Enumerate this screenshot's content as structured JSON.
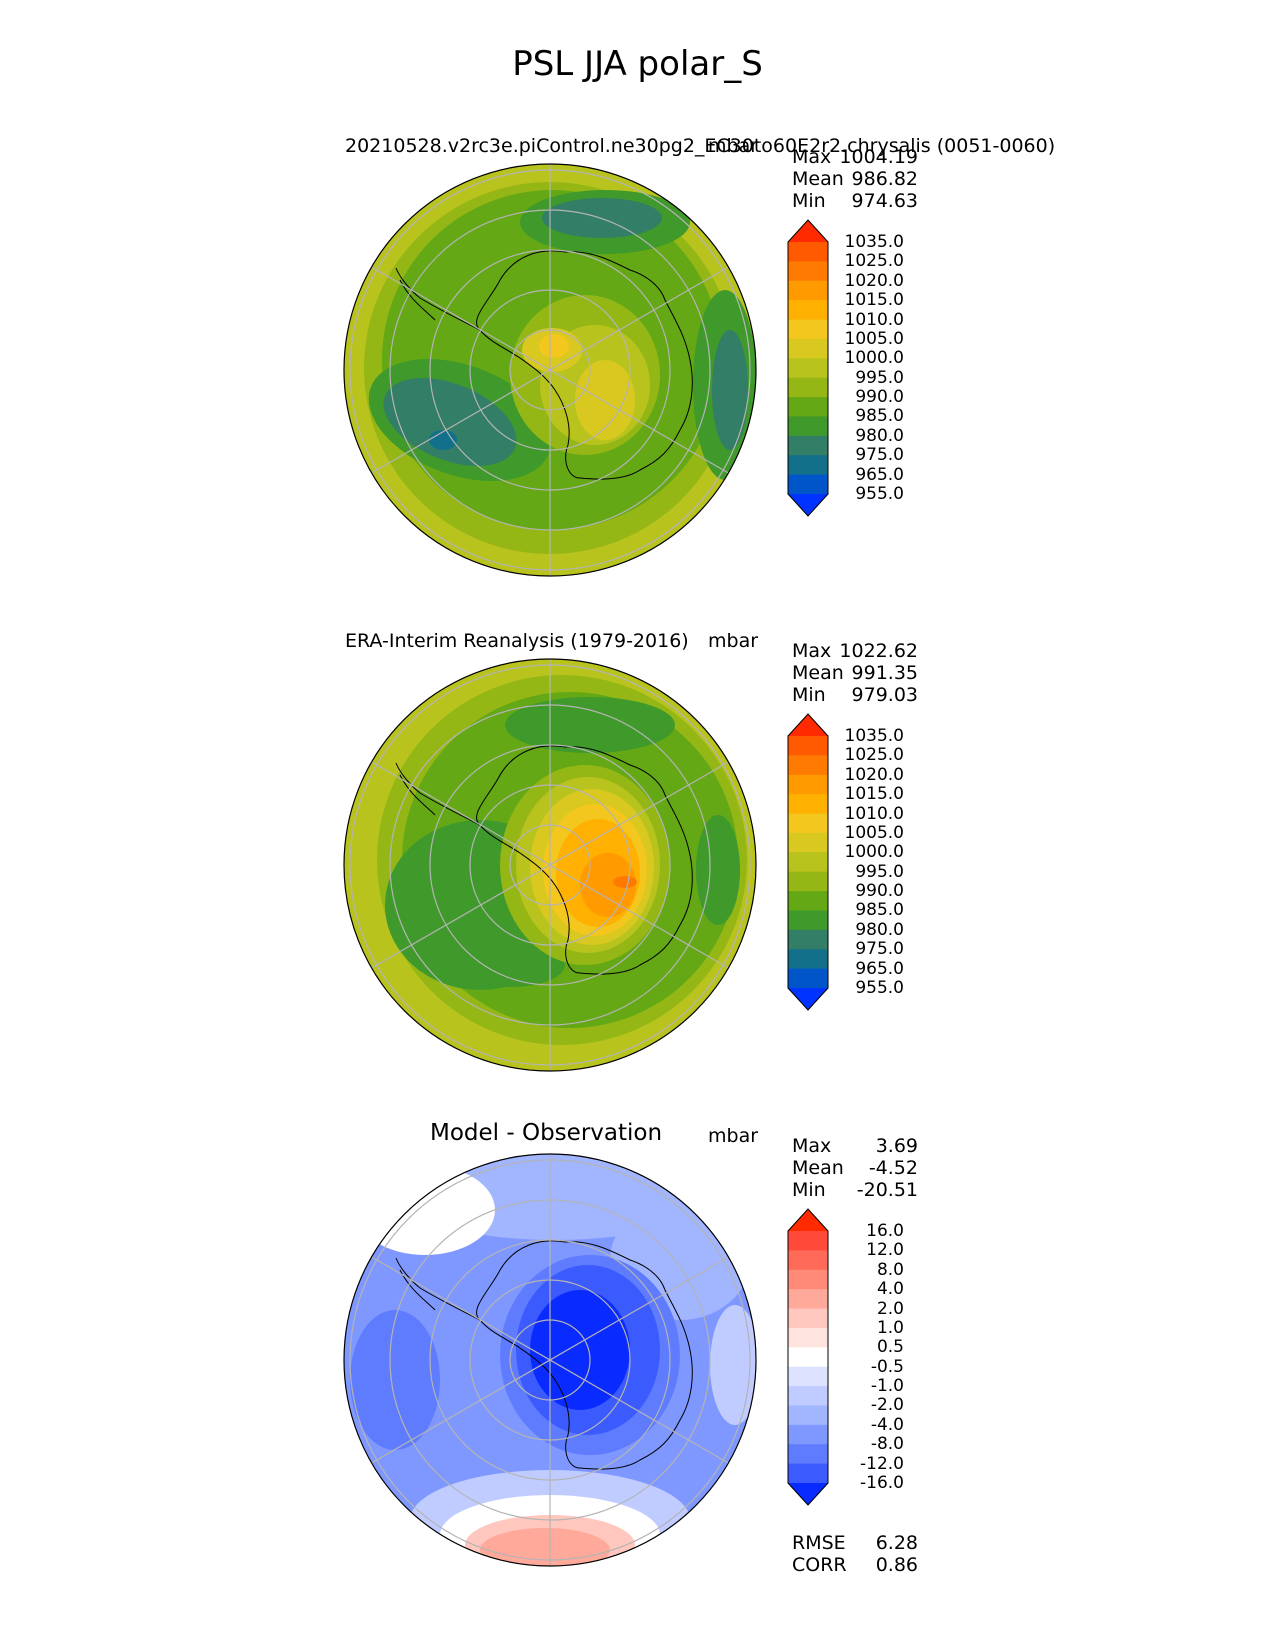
{
  "figure": {
    "title": "PSL JJA polar_S"
  },
  "chart_data": [
    {
      "type": "heatmap",
      "projection": "south-polar-stereographic",
      "title": "20210528.v2rc3e.piControl.ne30pg2_EC30to60E2r2.chrysalis (0051-0060)",
      "units": "mbar",
      "stats": {
        "max": "1004.19",
        "mean": "986.82",
        "min": "974.63"
      },
      "colorbar_levels": [
        "1035.0",
        "1025.0",
        "1020.0",
        "1015.0",
        "1010.0",
        "1005.0",
        "1000.0",
        "995.0",
        "990.0",
        "985.0",
        "980.0",
        "975.0",
        "965.0",
        "955.0"
      ],
      "colorbar_colors": [
        "#ff2a00",
        "#ff5a00",
        "#ff7a00",
        "#ff9a00",
        "#ffb000",
        "#f3c71d",
        "#d9c820",
        "#b9c31e",
        "#95b716",
        "#64a815",
        "#3f9a2b",
        "#327e66",
        "#13708a",
        "#0055c8",
        "#0033ff"
      ]
    },
    {
      "type": "heatmap",
      "projection": "south-polar-stereographic",
      "title": "ERA-Interim Reanalysis (1979-2016)",
      "units": "mbar",
      "stats": {
        "max": "1022.62",
        "mean": "991.35",
        "min": "979.03"
      },
      "colorbar_levels": [
        "1035.0",
        "1025.0",
        "1020.0",
        "1015.0",
        "1010.0",
        "1005.0",
        "1000.0",
        "995.0",
        "990.0",
        "985.0",
        "980.0",
        "975.0",
        "965.0",
        "955.0"
      ],
      "colorbar_colors": [
        "#ff2a00",
        "#ff5a00",
        "#ff7a00",
        "#ff9a00",
        "#ffb000",
        "#f3c71d",
        "#d9c820",
        "#b9c31e",
        "#95b716",
        "#64a815",
        "#3f9a2b",
        "#327e66",
        "#13708a",
        "#0055c8",
        "#0033ff"
      ]
    },
    {
      "type": "heatmap",
      "projection": "south-polar-stereographic",
      "title": "Model - Observation",
      "units": "mbar",
      "stats": {
        "max": "3.69",
        "mean": "-4.52",
        "min": "-20.51"
      },
      "colorbar_levels": [
        "16.0",
        "12.0",
        "8.0",
        "4.0",
        "2.0",
        "1.0",
        "0.5",
        "-0.5",
        "-1.0",
        "-2.0",
        "-4.0",
        "-8.0",
        "-12.0",
        "-16.0"
      ],
      "colorbar_colors": [
        "#ff2a00",
        "#ff4a3a",
        "#ff6b58",
        "#ff8a78",
        "#ffa99a",
        "#ffc7bd",
        "#ffe3de",
        "#ffffff",
        "#dde3ff",
        "#c0ccff",
        "#a2b5ff",
        "#7f98ff",
        "#5f7cff",
        "#3b5bff",
        "#0a2bff"
      ],
      "metrics": {
        "rmse": "6.28",
        "corr": "0.86"
      }
    }
  ],
  "labels": {
    "max": "Max",
    "mean": "Mean",
    "min": "Min",
    "rmse": "RMSE",
    "corr": "CORR"
  }
}
